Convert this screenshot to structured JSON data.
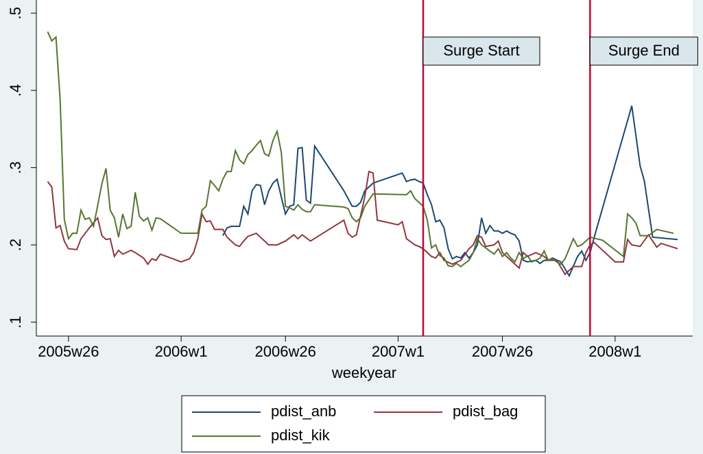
{
  "chart_data": {
    "type": "line",
    "x_label": "weekyear",
    "xlim": [
      2357.3,
      2514.6
    ],
    "ylim": [
      0.082,
      0.517
    ],
    "xticks": [
      {
        "value": 2365,
        "label": "2005w26"
      },
      {
        "value": 2392,
        "label": "2006w1"
      },
      {
        "value": 2417,
        "label": "2006w26"
      },
      {
        "value": 2444,
        "label": "2007w1"
      },
      {
        "value": 2469,
        "label": "2007w26"
      },
      {
        "value": 2496,
        "label": "2008w1"
      }
    ],
    "yticks": [
      {
        "value": 0.1,
        "label": ".1"
      },
      {
        "value": 0.2,
        "label": ".2"
      },
      {
        "value": 0.3,
        "label": ".3"
      },
      {
        "value": 0.4,
        "label": ".4"
      },
      {
        "value": 0.5,
        "label": ".5"
      }
    ],
    "grid": false,
    "legend": "bottom",
    "annotations": [
      {
        "label": "Surge Start",
        "x": 2450,
        "color": "#c10534"
      },
      {
        "label": "Surge End",
        "x": 2490,
        "color": "#c10534"
      }
    ],
    "series": [
      {
        "name": "pdist_anb",
        "color": "#1a476f",
        "x": [
          2402,
          2403,
          2404,
          2406,
          2407,
          2408,
          2409,
          2410,
          2411,
          2412,
          2413,
          2414,
          2415,
          2416,
          2417,
          2418,
          2419,
          2420,
          2421,
          2422,
          2423,
          2424,
          2431,
          2432,
          2433,
          2434,
          2435,
          2436,
          2437,
          2438,
          2445,
          2446,
          2447,
          2448,
          2449,
          2450,
          2451,
          2452,
          2453,
          2454,
          2455,
          2456,
          2457,
          2458,
          2459,
          2460,
          2461,
          2462,
          2463,
          2464,
          2465,
          2466,
          2467,
          2468,
          2469,
          2470,
          2471,
          2472,
          2473,
          2474,
          2475,
          2477,
          2478,
          2479,
          2480,
          2481,
          2483,
          2485,
          2487,
          2488,
          2489,
          2490,
          2491,
          2500,
          2502,
          2503,
          2505,
          2511
        ],
        "values": [
          0.212,
          0.222,
          0.224,
          0.224,
          0.25,
          0.24,
          0.27,
          0.278,
          0.277,
          0.252,
          0.27,
          0.28,
          0.285,
          0.262,
          0.24,
          0.25,
          0.252,
          0.325,
          0.326,
          0.258,
          0.254,
          0.328,
          0.27,
          0.26,
          0.25,
          0.25,
          0.255,
          0.27,
          0.275,
          0.28,
          0.293,
          0.282,
          0.284,
          0.285,
          0.282,
          0.28,
          0.265,
          0.252,
          0.23,
          0.232,
          0.222,
          0.195,
          0.182,
          0.185,
          0.183,
          0.19,
          0.183,
          0.19,
          0.2,
          0.235,
          0.215,
          0.225,
          0.218,
          0.218,
          0.215,
          0.218,
          0.215,
          0.213,
          0.205,
          0.18,
          0.178,
          0.18,
          0.176,
          0.18,
          0.18,
          0.183,
          0.178,
          0.16,
          0.185,
          0.192,
          0.18,
          0.19,
          0.21,
          0.38,
          0.302,
          0.283,
          0.21,
          0.207
        ]
      },
      {
        "name": "pdist_bag",
        "color": "#90353b",
        "x": [
          2360,
          2361,
          2362,
          2363,
          2364,
          2365,
          2367,
          2368,
          2370,
          2372,
          2373,
          2374,
          2375,
          2376,
          2377,
          2378,
          2380,
          2381,
          2383,
          2384,
          2385,
          2386,
          2387,
          2392,
          2394,
          2395,
          2396,
          2397,
          2398,
          2399,
          2400,
          2402,
          2403,
          2405,
          2406,
          2407,
          2408,
          2410,
          2411,
          2413,
          2415,
          2417,
          2419,
          2420,
          2421,
          2423,
          2431,
          2432,
          2433,
          2434,
          2436,
          2437,
          2438,
          2439,
          2444,
          2445,
          2446,
          2448,
          2449,
          2450,
          2451,
          2452,
          2453,
          2454,
          2455,
          2457,
          2459,
          2461,
          2462,
          2463,
          2464,
          2465,
          2467,
          2468,
          2469,
          2471,
          2473,
          2474,
          2475,
          2477,
          2479,
          2480,
          2482,
          2484,
          2486,
          2488,
          2489,
          2490,
          2491,
          2496,
          2498,
          2499,
          2500,
          2502,
          2504,
          2506,
          2507,
          2511
        ],
        "values": [
          0.282,
          0.275,
          0.222,
          0.225,
          0.205,
          0.195,
          0.194,
          0.208,
          0.222,
          0.235,
          0.212,
          0.207,
          0.208,
          0.185,
          0.193,
          0.188,
          0.193,
          0.19,
          0.183,
          0.175,
          0.182,
          0.18,
          0.188,
          0.178,
          0.182,
          0.19,
          0.208,
          0.24,
          0.23,
          0.231,
          0.22,
          0.22,
          0.21,
          0.2,
          0.198,
          0.205,
          0.211,
          0.215,
          0.21,
          0.2,
          0.2,
          0.205,
          0.213,
          0.208,
          0.213,
          0.205,
          0.232,
          0.215,
          0.21,
          0.213,
          0.262,
          0.295,
          0.293,
          0.232,
          0.226,
          0.23,
          0.208,
          0.2,
          0.198,
          0.195,
          0.19,
          0.185,
          0.183,
          0.19,
          0.18,
          0.175,
          0.18,
          0.195,
          0.2,
          0.212,
          0.21,
          0.198,
          0.2,
          0.205,
          0.19,
          0.18,
          0.17,
          0.19,
          0.185,
          0.19,
          0.185,
          0.18,
          0.18,
          0.162,
          0.172,
          0.172,
          0.19,
          0.2,
          0.203,
          0.178,
          0.178,
          0.207,
          0.2,
          0.198,
          0.213,
          0.197,
          0.202,
          0.195
        ]
      },
      {
        "name": "pdist_kik",
        "color": "#55752f",
        "x": [
          2360,
          2361,
          2362,
          2363,
          2364,
          2365,
          2366,
          2367,
          2368,
          2369,
          2370,
          2371,
          2372,
          2373,
          2374,
          2375,
          2376,
          2377,
          2378,
          2379,
          2380,
          2381,
          2382,
          2383,
          2384,
          2385,
          2386,
          2387,
          2392,
          2396,
          2397,
          2398,
          2399,
          2400,
          2401,
          2402,
          2403,
          2404,
          2405,
          2406,
          2407,
          2408,
          2409,
          2410,
          2411,
          2412,
          2413,
          2414,
          2415,
          2416,
          2417,
          2418,
          2419,
          2420,
          2421,
          2422,
          2423,
          2424,
          2431,
          2432,
          2433,
          2434,
          2435,
          2436,
          2437,
          2438,
          2446,
          2447,
          2448,
          2450,
          2451,
          2452,
          2453,
          2454,
          2455,
          2456,
          2457,
          2458,
          2459,
          2460,
          2461,
          2462,
          2463,
          2464,
          2465,
          2466,
          2467,
          2468,
          2469,
          2470,
          2471,
          2472,
          2473,
          2474,
          2475,
          2476,
          2477,
          2478,
          2479,
          2480,
          2481,
          2482,
          2483,
          2484,
          2485,
          2486,
          2487,
          2488,
          2490,
          2493,
          2498,
          2499,
          2500,
          2501,
          2502,
          2504,
          2506,
          2510
        ],
        "values": [
          0.476,
          0.464,
          0.469,
          0.388,
          0.233,
          0.208,
          0.215,
          0.215,
          0.245,
          0.233,
          0.235,
          0.224,
          0.251,
          0.279,
          0.299,
          0.245,
          0.235,
          0.21,
          0.24,
          0.221,
          0.224,
          0.268,
          0.237,
          0.231,
          0.235,
          0.219,
          0.235,
          0.234,
          0.215,
          0.215,
          0.245,
          0.25,
          0.283,
          0.277,
          0.27,
          0.285,
          0.295,
          0.295,
          0.322,
          0.31,
          0.305,
          0.317,
          0.322,
          0.329,
          0.335,
          0.318,
          0.315,
          0.335,
          0.347,
          0.32,
          0.25,
          0.248,
          0.245,
          0.252,
          0.246,
          0.243,
          0.243,
          0.252,
          0.249,
          0.247,
          0.235,
          0.23,
          0.235,
          0.25,
          0.258,
          0.266,
          0.265,
          0.27,
          0.26,
          0.25,
          0.232,
          0.196,
          0.2,
          0.186,
          0.183,
          0.173,
          0.172,
          0.176,
          0.172,
          0.176,
          0.18,
          0.19,
          0.208,
          0.2,
          0.196,
          0.192,
          0.188,
          0.195,
          0.185,
          0.19,
          0.183,
          0.178,
          0.19,
          0.182,
          0.186,
          0.178,
          0.18,
          0.183,
          0.192,
          0.18,
          0.182,
          0.178,
          0.175,
          0.182,
          0.195,
          0.208,
          0.198,
          0.2,
          0.21,
          0.206,
          0.185,
          0.24,
          0.235,
          0.228,
          0.212,
          0.212,
          0.22,
          0.215
        ]
      }
    ]
  }
}
